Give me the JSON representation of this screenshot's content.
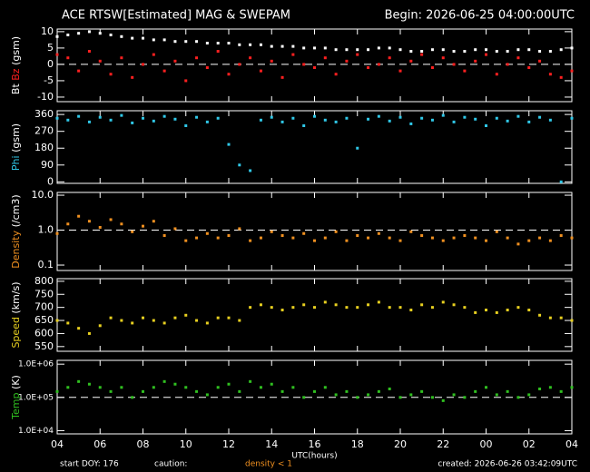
{
  "header": {
    "title": "ACE RTSW[Estimated] MAG & SWEPAM",
    "begin": "Begin: 2026-06-25 04:00:00UTC"
  },
  "footer": {
    "start": "start DOY: 176",
    "caution": "caution:",
    "density_note": "density < 1",
    "created": "created: 2026-06-26 03:42:09UTC"
  },
  "chart_data": [
    {
      "type": "scatter",
      "ylabel": "(gsm)",
      "ylim": [
        -11.4,
        10.8
      ],
      "yticks": [
        -10,
        -5,
        0,
        5,
        10
      ],
      "reference_line": 0,
      "xlabel": "UTC(hours)",
      "xlim": [
        0,
        24
      ],
      "xticks": [
        {
          "value": 0,
          "label": "04"
        },
        {
          "value": 2,
          "label": "06"
        },
        {
          "value": 4,
          "label": "08"
        },
        {
          "value": 6,
          "label": "10"
        },
        {
          "value": 8,
          "label": "12"
        },
        {
          "value": 10,
          "label": "14"
        },
        {
          "value": 12,
          "label": "16"
        },
        {
          "value": 14,
          "label": "18"
        },
        {
          "value": 16,
          "label": "20"
        },
        {
          "value": 18,
          "label": "22"
        },
        {
          "value": 20,
          "label": "00"
        },
        {
          "value": 22,
          "label": "02"
        },
        {
          "value": 24,
          "label": "04"
        }
      ],
      "x": [
        0,
        0.5,
        1,
        1.5,
        2,
        2.5,
        3,
        3.5,
        4,
        4.5,
        5,
        5.5,
        6,
        6.5,
        7,
        7.5,
        8,
        8.5,
        9,
        9.5,
        10,
        10.5,
        11,
        11.5,
        12,
        12.5,
        13,
        13.5,
        14,
        14.5,
        15,
        15.5,
        16,
        16.5,
        17,
        17.5,
        18,
        18.5,
        19,
        19.5,
        20,
        20.5,
        21,
        21.5,
        22,
        22.5,
        23,
        23.5,
        24
      ],
      "series": [
        {
          "name": "Bt",
          "color": "#ffffff",
          "values": [
            8.5,
            9,
            9.5,
            10,
            9.5,
            9,
            8.5,
            8,
            8,
            7.5,
            7.5,
            7,
            7,
            7,
            6.5,
            6.5,
            6.5,
            6,
            6,
            6,
            5.5,
            5.5,
            5.5,
            5,
            5,
            5,
            4.5,
            4.5,
            4.5,
            4.5,
            5,
            5,
            4.5,
            4,
            4,
            4.5,
            4.5,
            4,
            4,
            4.5,
            4.5,
            4,
            4,
            4.5,
            4.5,
            4,
            4,
            4.5,
            5
          ]
        },
        {
          "name": "Bz",
          "color": "#ff2020",
          "values": [
            3,
            2,
            -2,
            4,
            1,
            -3,
            2,
            -4,
            0,
            3,
            -2,
            1,
            -5,
            2,
            -1,
            4,
            -3,
            0,
            2,
            -2,
            1,
            -4,
            3,
            0,
            -1,
            2,
            -3,
            1,
            3,
            -1,
            0,
            2,
            -2,
            1,
            3,
            -1,
            2,
            0,
            -2,
            1,
            3,
            -3,
            0,
            2,
            -1,
            1,
            -3,
            -4,
            -2
          ]
        }
      ]
    },
    {
      "type": "scatter",
      "ylabel": "(gsm)",
      "ylim": [
        -8,
        380
      ],
      "yticks": [
        0,
        90,
        180,
        270,
        360
      ],
      "xlim": [
        0,
        24
      ],
      "x": [
        0,
        0.5,
        1,
        1.5,
        2,
        2.5,
        3,
        3.5,
        4,
        4.5,
        5,
        5.5,
        6,
        6.5,
        7,
        7.5,
        8,
        8.5,
        9,
        9.5,
        10,
        10.5,
        11,
        11.5,
        12,
        12.5,
        13,
        13.5,
        14,
        14.5,
        15,
        15.5,
        16,
        16.5,
        17,
        17.5,
        18,
        18.5,
        19,
        19.5,
        20,
        20.5,
        21,
        21.5,
        22,
        22.5,
        23,
        23.5,
        24
      ],
      "series": [
        {
          "name": "Phi",
          "color": "#30c8e8",
          "values": [
            340,
            330,
            350,
            320,
            345,
            330,
            355,
            315,
            340,
            325,
            350,
            335,
            300,
            345,
            320,
            340,
            200,
            90,
            60,
            330,
            345,
            320,
            340,
            300,
            350,
            330,
            320,
            340,
            180,
            335,
            350,
            325,
            345,
            310,
            340,
            330,
            355,
            320,
            345,
            335,
            300,
            340,
            325,
            350,
            320,
            345,
            330,
            0,
            340
          ]
        }
      ]
    },
    {
      "type": "scatter",
      "ylabel": "(/cm3)",
      "log_scale": true,
      "ylim": [
        0.07,
        12
      ],
      "reference_line": 1,
      "yticks": [
        {
          "value": 0.1,
          "label": "0.1"
        },
        {
          "value": 1,
          "label": "1.0"
        },
        {
          "value": 10,
          "label": "10.0"
        }
      ],
      "xlim": [
        0,
        24
      ],
      "x": [
        0,
        0.5,
        1,
        1.5,
        2,
        2.5,
        3,
        3.5,
        4,
        4.5,
        5,
        5.5,
        6,
        6.5,
        7,
        7.5,
        8,
        8.5,
        9,
        9.5,
        10,
        10.5,
        11,
        11.5,
        12,
        12.5,
        13,
        13.5,
        14,
        14.5,
        15,
        15.5,
        16,
        16.5,
        17,
        17.5,
        18,
        18.5,
        19,
        19.5,
        20,
        20.5,
        21,
        21.5,
        22,
        22.5,
        23,
        23.5,
        24
      ],
      "series": [
        {
          "name": "Density",
          "color": "#f09020",
          "values": [
            0.8,
            1.5,
            2.5,
            1.8,
            1.2,
            2,
            1.5,
            0.9,
            1.3,
            1.8,
            0.7,
            1.1,
            0.5,
            0.6,
            0.8,
            0.6,
            0.7,
            1.1,
            0.5,
            0.6,
            0.9,
            0.7,
            0.6,
            0.8,
            0.5,
            0.6,
            0.9,
            0.5,
            0.7,
            0.6,
            0.8,
            0.6,
            0.5,
            0.9,
            0.7,
            0.6,
            0.5,
            0.6,
            0.7,
            0.6,
            0.5,
            0.9,
            0.6,
            0.4,
            0.5,
            0.6,
            0.5,
            0.7,
            0.6
          ]
        }
      ]
    },
    {
      "type": "scatter",
      "ylabel": "(km/s)",
      "ylim": [
        532,
        810
      ],
      "yticks": [
        550,
        600,
        650,
        700,
        750,
        800
      ],
      "xlim": [
        0,
        24
      ],
      "x": [
        0,
        0.5,
        1,
        1.5,
        2,
        2.5,
        3,
        3.5,
        4,
        4.5,
        5,
        5.5,
        6,
        6.5,
        7,
        7.5,
        8,
        8.5,
        9,
        9.5,
        10,
        10.5,
        11,
        11.5,
        12,
        12.5,
        13,
        13.5,
        14,
        14.5,
        15,
        15.5,
        16,
        16.5,
        17,
        17.5,
        18,
        18.5,
        19,
        19.5,
        20,
        20.5,
        21,
        21.5,
        22,
        22.5,
        23,
        23.5,
        24
      ],
      "series": [
        {
          "name": "Speed",
          "color": "#e8d020",
          "values": [
            650,
            640,
            620,
            600,
            630,
            660,
            650,
            640,
            660,
            650,
            640,
            660,
            670,
            650,
            640,
            660,
            660,
            650,
            700,
            710,
            700,
            690,
            700,
            710,
            700,
            720,
            710,
            700,
            700,
            710,
            720,
            700,
            700,
            690,
            710,
            700,
            720,
            710,
            700,
            680,
            690,
            680,
            690,
            700,
            690,
            670,
            660,
            660,
            650
          ]
        }
      ]
    },
    {
      "type": "scatter",
      "ylabel": "(K)",
      "log_scale": true,
      "ylim": [
        8000,
        1300000
      ],
      "reference_line": 100000,
      "yticks": [
        {
          "value": 10000,
          "label": "1.0E+04"
        },
        {
          "value": 100000,
          "label": "1.0E+05"
        },
        {
          "value": 1000000,
          "label": "1.0E+06"
        }
      ],
      "xlim": [
        0,
        24
      ],
      "x": [
        0,
        0.5,
        1,
        1.5,
        2,
        2.5,
        3,
        3.5,
        4,
        4.5,
        5,
        5.5,
        6,
        6.5,
        7,
        7.5,
        8,
        8.5,
        9,
        9.5,
        10,
        10.5,
        11,
        11.5,
        12,
        12.5,
        13,
        13.5,
        14,
        14.5,
        15,
        15.5,
        16,
        16.5,
        17,
        17.5,
        18,
        18.5,
        19,
        19.5,
        20,
        20.5,
        21,
        21.5,
        22,
        22.5,
        23,
        23.5,
        24
      ],
      "series": [
        {
          "name": "Temp",
          "color": "#30c020",
          "values": [
            150000,
            200000,
            300000,
            250000,
            200000,
            150000,
            200000,
            100000,
            150000,
            200000,
            300000,
            250000,
            200000,
            150000,
            120000,
            200000,
            250000,
            150000,
            300000,
            200000,
            250000,
            150000,
            200000,
            100000,
            150000,
            200000,
            120000,
            150000,
            100000,
            120000,
            150000,
            180000,
            100000,
            120000,
            150000,
            100000,
            80000,
            120000,
            100000,
            150000,
            200000,
            120000,
            150000,
            100000,
            120000,
            180000,
            200000,
            150000,
            200000
          ]
        }
      ]
    }
  ]
}
